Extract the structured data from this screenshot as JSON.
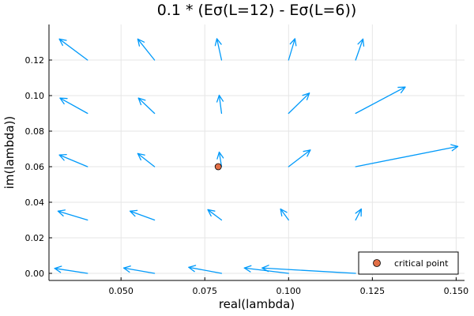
{
  "chart_data": {
    "type": "quiver",
    "title": "0.1 * (Eσ(L=12) - Eσ(L=6))",
    "xlabel": "real(lambda)",
    "ylabel": "im(lambda))",
    "xlim": [
      0.0285,
      0.1525
    ],
    "ylim": [
      -0.004,
      0.14
    ],
    "xticks": [
      0.05,
      0.075,
      0.1,
      0.125,
      0.15
    ],
    "xtick_labels": [
      "0.050",
      "0.075",
      "0.100",
      "0.125",
      "0.150"
    ],
    "yticks": [
      0.0,
      0.02,
      0.04,
      0.06,
      0.08,
      0.1,
      0.12
    ],
    "ytick_labels": [
      "0.00",
      "0.02",
      "0.04",
      "0.06",
      "0.08",
      "0.10",
      "0.12"
    ],
    "grid": true,
    "legend_position": "bottom-right",
    "vector_color": "#009AFA",
    "point_color": "#E26F46",
    "vectors": [
      {
        "x": 0.04,
        "y": 0.12,
        "dx": -0.0084,
        "dy": 0.0118
      },
      {
        "x": 0.06,
        "y": 0.12,
        "dx": -0.005,
        "dy": 0.0118
      },
      {
        "x": 0.08,
        "y": 0.12,
        "dx": -0.0014,
        "dy": 0.012
      },
      {
        "x": 0.1,
        "y": 0.12,
        "dx": 0.0019,
        "dy": 0.012
      },
      {
        "x": 0.12,
        "y": 0.12,
        "dx": 0.0022,
        "dy": 0.0118
      },
      {
        "x": 0.04,
        "y": 0.09,
        "dx": -0.0082,
        "dy": 0.0086
      },
      {
        "x": 0.06,
        "y": 0.09,
        "dx": -0.0048,
        "dy": 0.0086
      },
      {
        "x": 0.08,
        "y": 0.09,
        "dx": -0.0007,
        "dy": 0.0102
      },
      {
        "x": 0.1,
        "y": 0.09,
        "dx": 0.0062,
        "dy": 0.0114
      },
      {
        "x": 0.12,
        "y": 0.09,
        "dx": 0.0148,
        "dy": 0.0148
      },
      {
        "x": 0.04,
        "y": 0.06,
        "dx": -0.0084,
        "dy": 0.0066
      },
      {
        "x": 0.06,
        "y": 0.06,
        "dx": -0.005,
        "dy": 0.0074
      },
      {
        "x": 0.08,
        "y": 0.06,
        "dx": -0.0007,
        "dy": 0.0082
      },
      {
        "x": 0.1,
        "y": 0.06,
        "dx": 0.0065,
        "dy": 0.0094
      },
      {
        "x": 0.12,
        "y": 0.06,
        "dx": 0.0305,
        "dy": 0.0114
      },
      {
        "x": 0.04,
        "y": 0.03,
        "dx": -0.0088,
        "dy": 0.005
      },
      {
        "x": 0.06,
        "y": 0.03,
        "dx": -0.0073,
        "dy": 0.005
      },
      {
        "x": 0.08,
        "y": 0.03,
        "dx": -0.0041,
        "dy": 0.0058
      },
      {
        "x": 0.1,
        "y": 0.03,
        "dx": -0.0024,
        "dy": 0.0062
      },
      {
        "x": 0.12,
        "y": 0.03,
        "dx": 0.0017,
        "dy": 0.0062
      },
      {
        "x": 0.04,
        "y": 0.0,
        "dx": -0.0098,
        "dy": 0.0028
      },
      {
        "x": 0.06,
        "y": 0.0,
        "dx": -0.0092,
        "dy": 0.003
      },
      {
        "x": 0.08,
        "y": 0.0,
        "dx": -0.0098,
        "dy": 0.0034
      },
      {
        "x": 0.1,
        "y": 0.0,
        "dx": -0.0132,
        "dy": 0.003
      },
      {
        "x": 0.12,
        "y": 0.0,
        "dx": -0.0279,
        "dy": 0.003
      }
    ],
    "series": [
      {
        "name": "critical point",
        "type": "scatter",
        "x": [
          0.079
        ],
        "y": [
          0.06
        ]
      }
    ]
  }
}
